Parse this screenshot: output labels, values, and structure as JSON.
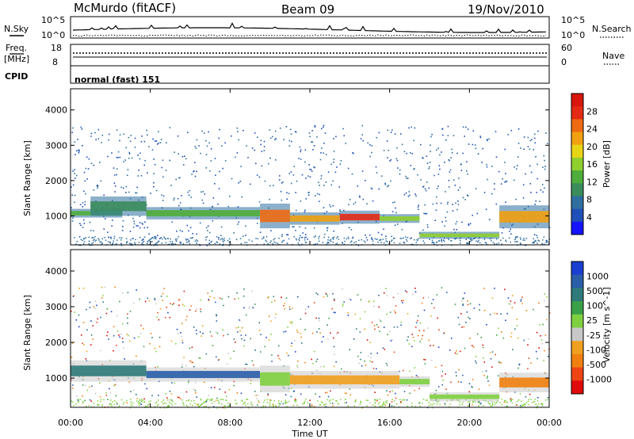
{
  "header": {
    "station": "McMurdo (fitACF)",
    "beam": "Beam 09",
    "date": "19/Nov/2010"
  },
  "panels": {
    "nsky": {
      "left_label": "N.Sky",
      "right_label": "N.Search",
      "left_ticks": [
        "10^5",
        "10^0"
      ],
      "right_ticks": [
        "10^5",
        "10^0"
      ]
    },
    "freq": {
      "left_label_line1": "Freq.",
      "left_label_line2": "[MHz]",
      "left_ticks": [
        "18",
        "8"
      ],
      "right_label": "Nave",
      "right_ticks": [
        "60",
        "0"
      ]
    },
    "cpid": {
      "label": "CPID",
      "value": "normal (fast) 151"
    }
  },
  "chart_data": [
    {
      "type": "heatmap",
      "title": "Power",
      "ylabel": "Slant Range [km]",
      "xlabel": "Time UT",
      "x_ticks": [
        "00:00",
        "04:00",
        "08:00",
        "12:00",
        "16:00",
        "20:00",
        "00:00"
      ],
      "y_ticks": [
        1000,
        2000,
        3000,
        4000
      ],
      "ylim": [
        180,
        4600
      ],
      "colorbar_label": "Power [dB]",
      "colorbar_ticks": [
        "28",
        "24",
        "20",
        "16",
        "12",
        "8",
        "4"
      ],
      "colorbar_colors": [
        "#1414ff",
        "#1f4fb8",
        "#2e6fa0",
        "#3b8c5c",
        "#4fae3b",
        "#8fcf2e",
        "#e8d417",
        "#f0a010",
        "#ee6a12",
        "#e42a14",
        "#d8160e"
      ],
      "bands": [
        {
          "t_start": 0.0,
          "t_end": 2.6,
          "range_start": 950,
          "range_end": 1200,
          "level": 12
        },
        {
          "t_start": 1.0,
          "t_end": 3.8,
          "range_start": 1000,
          "range_end": 1550,
          "level": 8
        },
        {
          "t_start": 3.8,
          "t_end": 9.5,
          "range_start": 900,
          "range_end": 1250,
          "level": 12
        },
        {
          "t_start": 9.5,
          "t_end": 11.0,
          "range_start": 650,
          "range_end": 1350,
          "level": 24
        },
        {
          "t_start": 11.0,
          "t_end": 13.5,
          "range_start": 750,
          "range_end": 1100,
          "level": 20
        },
        {
          "t_start": 13.5,
          "t_end": 15.5,
          "range_start": 780,
          "range_end": 1150,
          "level": 26
        },
        {
          "t_start": 15.5,
          "t_end": 17.5,
          "range_start": 800,
          "range_end": 1050,
          "level": 16
        },
        {
          "t_start": 17.5,
          "t_end": 21.5,
          "range_start": 350,
          "range_end": 550,
          "level": 16
        },
        {
          "t_start": 21.5,
          "t_end": 24.0,
          "range_start": 650,
          "range_end": 1300,
          "level": 20
        }
      ]
    },
    {
      "type": "heatmap",
      "title": "Velocity",
      "ylabel": "Slant Range [km]",
      "xlabel": "Time UT",
      "x_ticks": [
        "00:00",
        "04:00",
        "08:00",
        "12:00",
        "16:00",
        "20:00",
        "00:00"
      ],
      "y_ticks": [
        1000,
        2000,
        3000,
        4000
      ],
      "ylim": [
        180,
        4600
      ],
      "colorbar_label": "Velocity [m s^-1]",
      "colorbar_ticks": [
        "1000",
        "500",
        "100",
        "25",
        "-25",
        "-100",
        "-500",
        "-1000"
      ],
      "colorbar_colors": [
        "#1a3fd0",
        "#2a5ea8",
        "#2f7a7a",
        "#3aa048",
        "#7fd040",
        "#c8c8c8",
        "#f0a020",
        "#f08010",
        "#ee4414",
        "#e00a0a"
      ],
      "bands": [
        {
          "t_start": 0.0,
          "t_end": 3.8,
          "range_start": 900,
          "range_end": 1500,
          "level": 100
        },
        {
          "t_start": 3.8,
          "t_end": 9.5,
          "range_start": 900,
          "range_end": 1300,
          "level": 250
        },
        {
          "t_start": 9.5,
          "t_end": 11.0,
          "range_start": 600,
          "range_end": 1350,
          "level": 0
        },
        {
          "t_start": 11.0,
          "t_end": 16.5,
          "range_start": 700,
          "range_end": 1200,
          "level": -150
        },
        {
          "t_start": 16.5,
          "t_end": 18.0,
          "range_start": 750,
          "range_end": 1050,
          "level": 0
        },
        {
          "t_start": 18.0,
          "t_end": 21.5,
          "range_start": 350,
          "range_end": 600,
          "level": 0
        },
        {
          "t_start": 21.5,
          "t_end": 24.0,
          "range_start": 600,
          "range_end": 1150,
          "level": -700
        }
      ]
    }
  ]
}
